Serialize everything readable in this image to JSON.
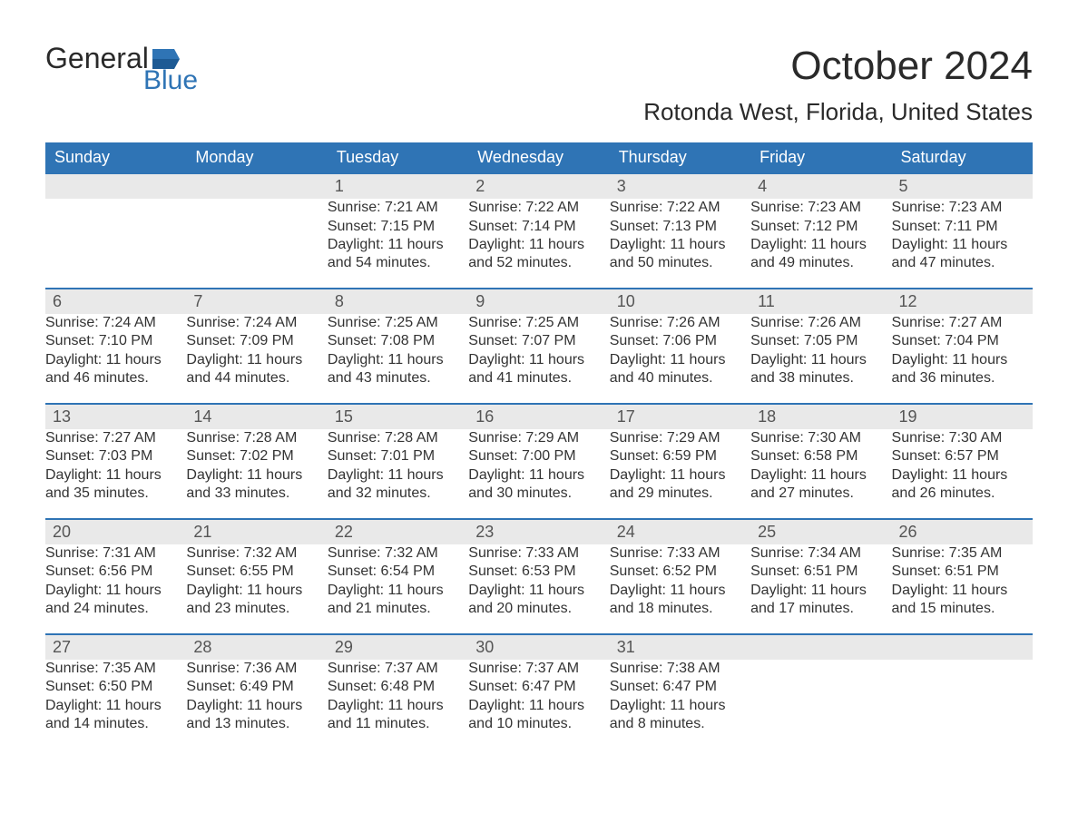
{
  "logo": {
    "word1": "General",
    "word2": "Blue"
  },
  "title": "October 2024",
  "location": "Rotonda West, Florida, United States",
  "colors": {
    "header_blue": "#2f74b5",
    "row_stripe": "#e9e9e9",
    "row_border": "#2f74b5",
    "text": "#333333",
    "logo_blue": "#2f74b5",
    "background": "#ffffff"
  },
  "weekdays": [
    "Sunday",
    "Monday",
    "Tuesday",
    "Wednesday",
    "Thursday",
    "Friday",
    "Saturday"
  ],
  "weeks": [
    [
      null,
      null,
      {
        "day": "1",
        "sunrise": "Sunrise: 7:21 AM",
        "sunset": "Sunset: 7:15 PM",
        "daylight1": "Daylight: 11 hours",
        "daylight2": "and 54 minutes."
      },
      {
        "day": "2",
        "sunrise": "Sunrise: 7:22 AM",
        "sunset": "Sunset: 7:14 PM",
        "daylight1": "Daylight: 11 hours",
        "daylight2": "and 52 minutes."
      },
      {
        "day": "3",
        "sunrise": "Sunrise: 7:22 AM",
        "sunset": "Sunset: 7:13 PM",
        "daylight1": "Daylight: 11 hours",
        "daylight2": "and 50 minutes."
      },
      {
        "day": "4",
        "sunrise": "Sunrise: 7:23 AM",
        "sunset": "Sunset: 7:12 PM",
        "daylight1": "Daylight: 11 hours",
        "daylight2": "and 49 minutes."
      },
      {
        "day": "5",
        "sunrise": "Sunrise: 7:23 AM",
        "sunset": "Sunset: 7:11 PM",
        "daylight1": "Daylight: 11 hours",
        "daylight2": "and 47 minutes."
      }
    ],
    [
      {
        "day": "6",
        "sunrise": "Sunrise: 7:24 AM",
        "sunset": "Sunset: 7:10 PM",
        "daylight1": "Daylight: 11 hours",
        "daylight2": "and 46 minutes."
      },
      {
        "day": "7",
        "sunrise": "Sunrise: 7:24 AM",
        "sunset": "Sunset: 7:09 PM",
        "daylight1": "Daylight: 11 hours",
        "daylight2": "and 44 minutes."
      },
      {
        "day": "8",
        "sunrise": "Sunrise: 7:25 AM",
        "sunset": "Sunset: 7:08 PM",
        "daylight1": "Daylight: 11 hours",
        "daylight2": "and 43 minutes."
      },
      {
        "day": "9",
        "sunrise": "Sunrise: 7:25 AM",
        "sunset": "Sunset: 7:07 PM",
        "daylight1": "Daylight: 11 hours",
        "daylight2": "and 41 minutes."
      },
      {
        "day": "10",
        "sunrise": "Sunrise: 7:26 AM",
        "sunset": "Sunset: 7:06 PM",
        "daylight1": "Daylight: 11 hours",
        "daylight2": "and 40 minutes."
      },
      {
        "day": "11",
        "sunrise": "Sunrise: 7:26 AM",
        "sunset": "Sunset: 7:05 PM",
        "daylight1": "Daylight: 11 hours",
        "daylight2": "and 38 minutes."
      },
      {
        "day": "12",
        "sunrise": "Sunrise: 7:27 AM",
        "sunset": "Sunset: 7:04 PM",
        "daylight1": "Daylight: 11 hours",
        "daylight2": "and 36 minutes."
      }
    ],
    [
      {
        "day": "13",
        "sunrise": "Sunrise: 7:27 AM",
        "sunset": "Sunset: 7:03 PM",
        "daylight1": "Daylight: 11 hours",
        "daylight2": "and 35 minutes."
      },
      {
        "day": "14",
        "sunrise": "Sunrise: 7:28 AM",
        "sunset": "Sunset: 7:02 PM",
        "daylight1": "Daylight: 11 hours",
        "daylight2": "and 33 minutes."
      },
      {
        "day": "15",
        "sunrise": "Sunrise: 7:28 AM",
        "sunset": "Sunset: 7:01 PM",
        "daylight1": "Daylight: 11 hours",
        "daylight2": "and 32 minutes."
      },
      {
        "day": "16",
        "sunrise": "Sunrise: 7:29 AM",
        "sunset": "Sunset: 7:00 PM",
        "daylight1": "Daylight: 11 hours",
        "daylight2": "and 30 minutes."
      },
      {
        "day": "17",
        "sunrise": "Sunrise: 7:29 AM",
        "sunset": "Sunset: 6:59 PM",
        "daylight1": "Daylight: 11 hours",
        "daylight2": "and 29 minutes."
      },
      {
        "day": "18",
        "sunrise": "Sunrise: 7:30 AM",
        "sunset": "Sunset: 6:58 PM",
        "daylight1": "Daylight: 11 hours",
        "daylight2": "and 27 minutes."
      },
      {
        "day": "19",
        "sunrise": "Sunrise: 7:30 AM",
        "sunset": "Sunset: 6:57 PM",
        "daylight1": "Daylight: 11 hours",
        "daylight2": "and 26 minutes."
      }
    ],
    [
      {
        "day": "20",
        "sunrise": "Sunrise: 7:31 AM",
        "sunset": "Sunset: 6:56 PM",
        "daylight1": "Daylight: 11 hours",
        "daylight2": "and 24 minutes."
      },
      {
        "day": "21",
        "sunrise": "Sunrise: 7:32 AM",
        "sunset": "Sunset: 6:55 PM",
        "daylight1": "Daylight: 11 hours",
        "daylight2": "and 23 minutes."
      },
      {
        "day": "22",
        "sunrise": "Sunrise: 7:32 AM",
        "sunset": "Sunset: 6:54 PM",
        "daylight1": "Daylight: 11 hours",
        "daylight2": "and 21 minutes."
      },
      {
        "day": "23",
        "sunrise": "Sunrise: 7:33 AM",
        "sunset": "Sunset: 6:53 PM",
        "daylight1": "Daylight: 11 hours",
        "daylight2": "and 20 minutes."
      },
      {
        "day": "24",
        "sunrise": "Sunrise: 7:33 AM",
        "sunset": "Sunset: 6:52 PM",
        "daylight1": "Daylight: 11 hours",
        "daylight2": "and 18 minutes."
      },
      {
        "day": "25",
        "sunrise": "Sunrise: 7:34 AM",
        "sunset": "Sunset: 6:51 PM",
        "daylight1": "Daylight: 11 hours",
        "daylight2": "and 17 minutes."
      },
      {
        "day": "26",
        "sunrise": "Sunrise: 7:35 AM",
        "sunset": "Sunset: 6:51 PM",
        "daylight1": "Daylight: 11 hours",
        "daylight2": "and 15 minutes."
      }
    ],
    [
      {
        "day": "27",
        "sunrise": "Sunrise: 7:35 AM",
        "sunset": "Sunset: 6:50 PM",
        "daylight1": "Daylight: 11 hours",
        "daylight2": "and 14 minutes."
      },
      {
        "day": "28",
        "sunrise": "Sunrise: 7:36 AM",
        "sunset": "Sunset: 6:49 PM",
        "daylight1": "Daylight: 11 hours",
        "daylight2": "and 13 minutes."
      },
      {
        "day": "29",
        "sunrise": "Sunrise: 7:37 AM",
        "sunset": "Sunset: 6:48 PM",
        "daylight1": "Daylight: 11 hours",
        "daylight2": "and 11 minutes."
      },
      {
        "day": "30",
        "sunrise": "Sunrise: 7:37 AM",
        "sunset": "Sunset: 6:47 PM",
        "daylight1": "Daylight: 11 hours",
        "daylight2": "and 10 minutes."
      },
      {
        "day": "31",
        "sunrise": "Sunrise: 7:38 AM",
        "sunset": "Sunset: 6:47 PM",
        "daylight1": "Daylight: 11 hours",
        "daylight2": "and 8 minutes."
      },
      null,
      null
    ]
  ]
}
